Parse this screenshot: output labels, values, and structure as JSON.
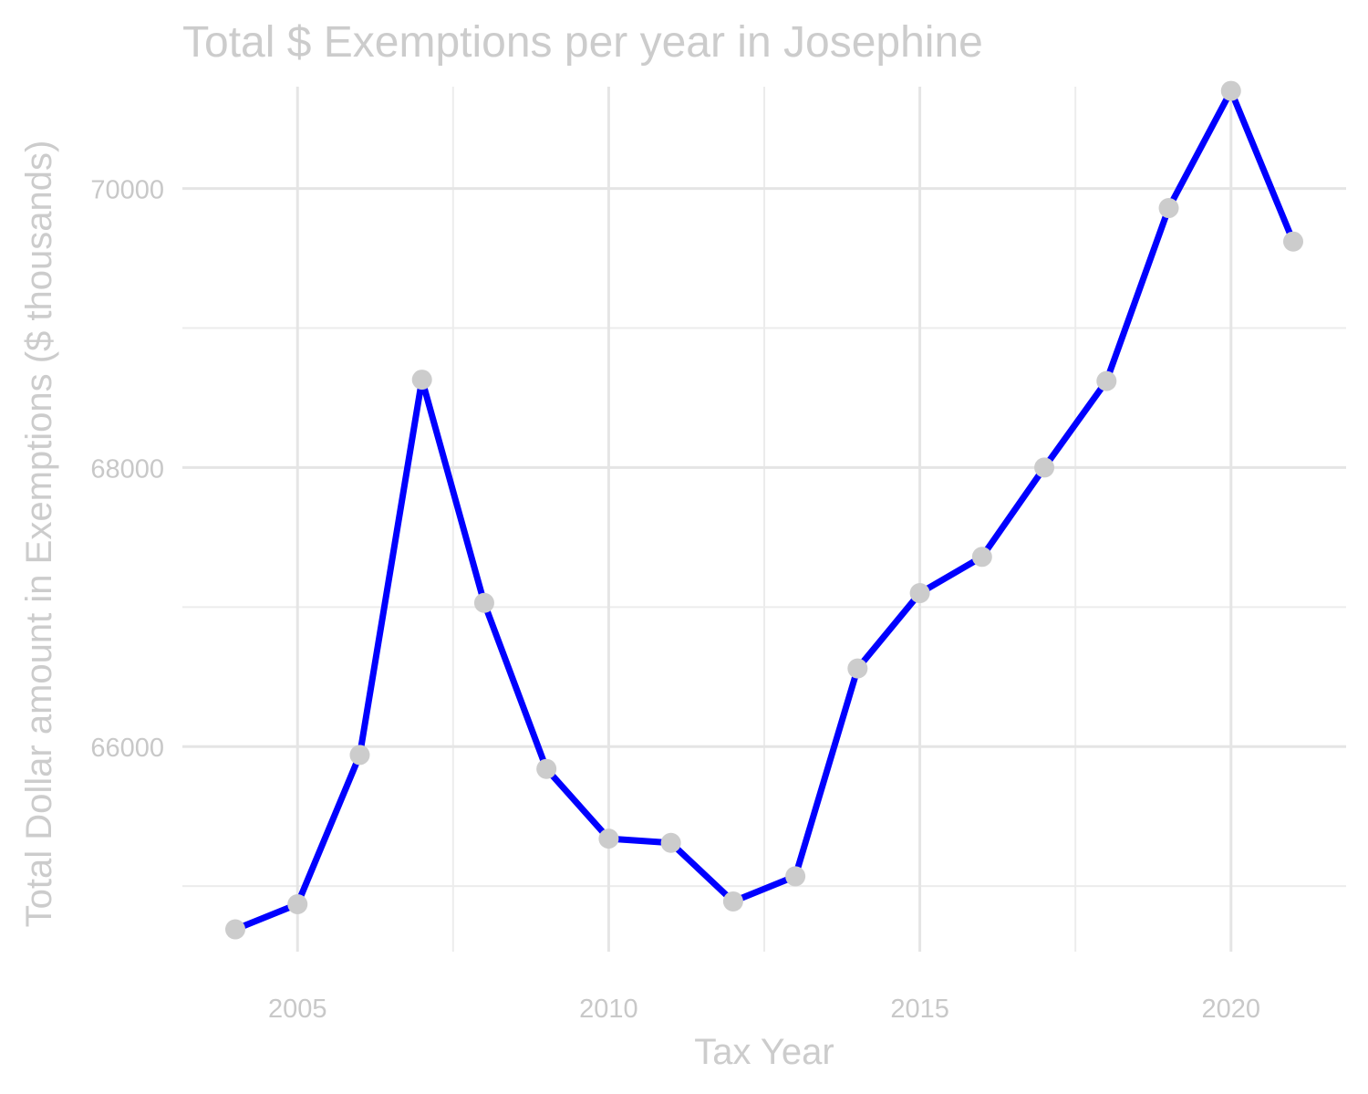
{
  "chart_data": {
    "type": "line",
    "title": "Total $ Exemptions per year in Josephine",
    "xlabel": "Tax Year",
    "ylabel": "Total Dollar amount in Exemptions ($ thousands)",
    "x_ticks": [
      2005,
      2010,
      2015,
      2020
    ],
    "y_ticks": [
      66000,
      68000,
      70000
    ],
    "xlim": [
      2003.15,
      2021.85
    ],
    "ylim": [
      64530,
      70730
    ],
    "grid": true,
    "legend": "none",
    "line_color": "#0000ff",
    "point_color": "#cccccc",
    "series": [
      {
        "x": [
          2004,
          2005,
          2006,
          2007,
          2008,
          2009,
          2010,
          2011,
          2012,
          2013,
          2014,
          2015,
          2016,
          2017,
          2018,
          2019,
          2020,
          2021
        ],
        "y": [
          64690,
          64870,
          65940,
          68630,
          67030,
          65840,
          65340,
          65310,
          64890,
          65070,
          66560,
          67100,
          67360,
          68000,
          68620,
          69860,
          70700,
          69620
        ]
      }
    ]
  }
}
